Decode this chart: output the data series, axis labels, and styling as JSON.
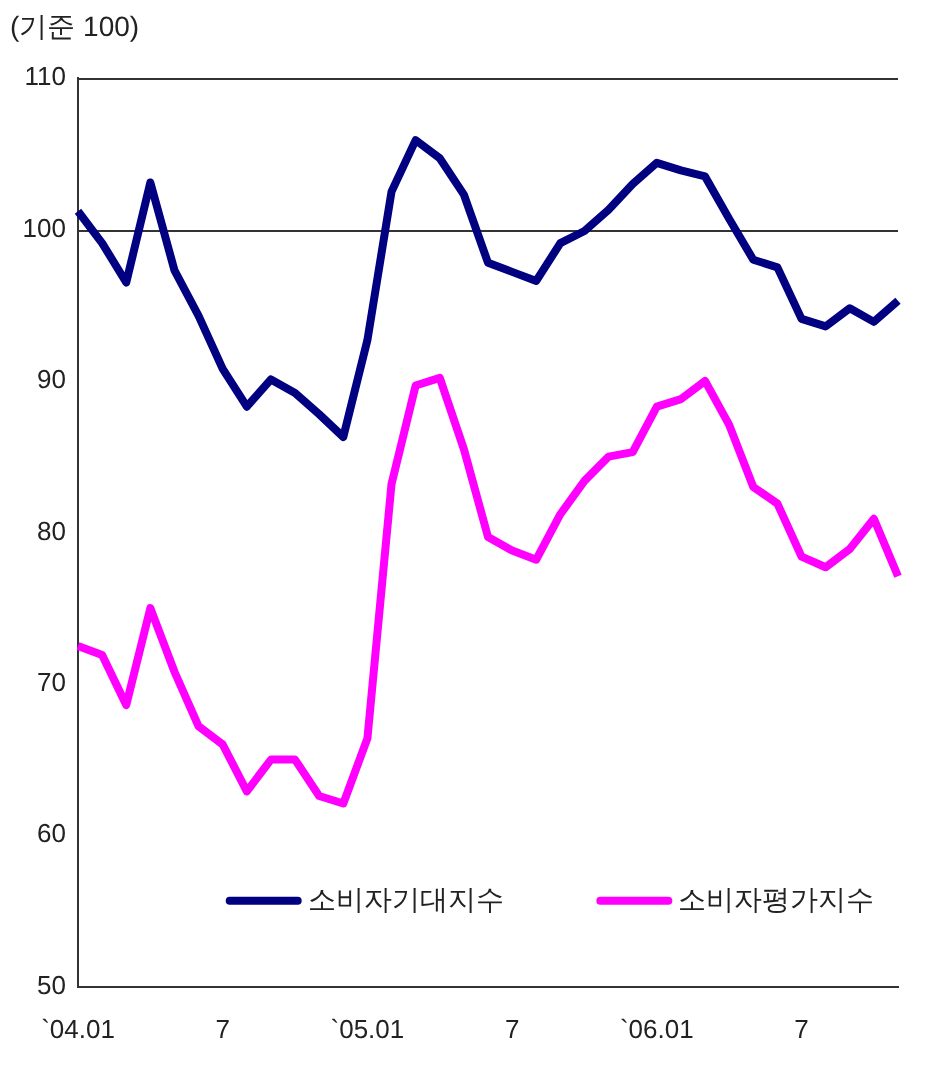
{
  "chart_data": {
    "type": "line",
    "ylabel": "(기준 100)",
    "categories": [
      "`04.01",
      null,
      null,
      null,
      null,
      null,
      "7",
      null,
      null,
      null,
      null,
      null,
      "`05.01",
      null,
      null,
      null,
      null,
      null,
      "7",
      null,
      null,
      null,
      null,
      null,
      "`06.01",
      null,
      null,
      null,
      null,
      null,
      "7",
      null,
      null,
      null,
      null
    ],
    "series": [
      {
        "name": "소비자기대지수",
        "color": "#000080",
        "values": [
          101.2,
          99.1,
          96.5,
          103.1,
          97.3,
          94.3,
          90.8,
          88.3,
          90.1,
          89.2,
          87.8,
          86.3,
          92.7,
          102.5,
          105.9,
          104.7,
          102.3,
          97.8,
          97.2,
          96.6,
          99.1,
          99.9,
          101.3,
          103.0,
          104.4,
          103.9,
          103.5,
          100.7,
          98.0,
          97.5,
          94.1,
          93.6,
          94.8,
          93.9,
          95.3
        ]
      },
      {
        "name": "소비자평가지수",
        "color": "#ff00ff",
        "values": [
          72.5,
          71.9,
          68.6,
          75.0,
          70.8,
          67.2,
          66.0,
          62.9,
          65.0,
          65.0,
          62.6,
          62.1,
          66.4,
          83.2,
          89.7,
          90.2,
          85.5,
          79.7,
          78.8,
          78.2,
          81.2,
          83.4,
          85.0,
          85.3,
          88.3,
          88.8,
          90.0,
          87.1,
          83.0,
          81.9,
          78.4,
          77.7,
          78.9,
          80.9,
          77.1
        ]
      }
    ],
    "ylim": [
      50,
      110
    ],
    "yticks": [
      50,
      60,
      70,
      80,
      90,
      100,
      110
    ],
    "ref_lines": [
      {
        "axis": "y",
        "value": 100
      }
    ],
    "grid": false,
    "legend": "bottom",
    "marker": "none",
    "line_style": "solid"
  }
}
